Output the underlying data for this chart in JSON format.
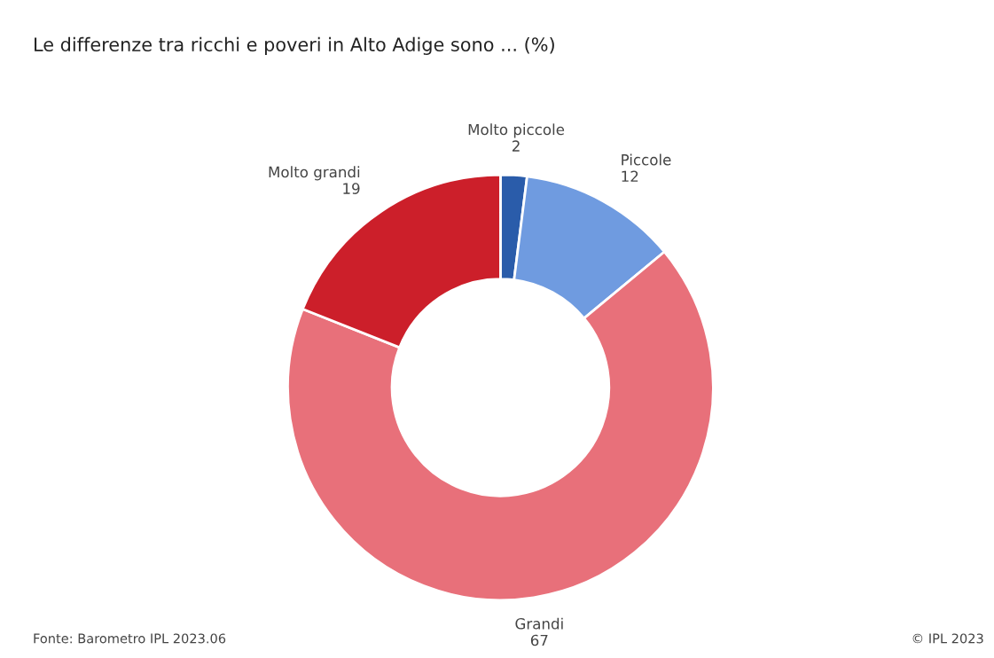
{
  "chart_data": {
    "type": "donut",
    "title": "Le differenze tra ricchi e poveri in Alto Adige sono ... (%)",
    "categories": [
      "Molto piccole",
      "Piccole",
      "Grandi",
      "Molto grandi"
    ],
    "values": [
      2,
      12,
      67,
      19
    ],
    "colors": [
      "#2a5caa",
      "#6f9be0",
      "#e8707a",
      "#cc1f2a"
    ],
    "data_labels": true,
    "annotations": [
      "Fonte: Barometro IPL 2023.06",
      "© IPL 2023"
    ]
  }
}
